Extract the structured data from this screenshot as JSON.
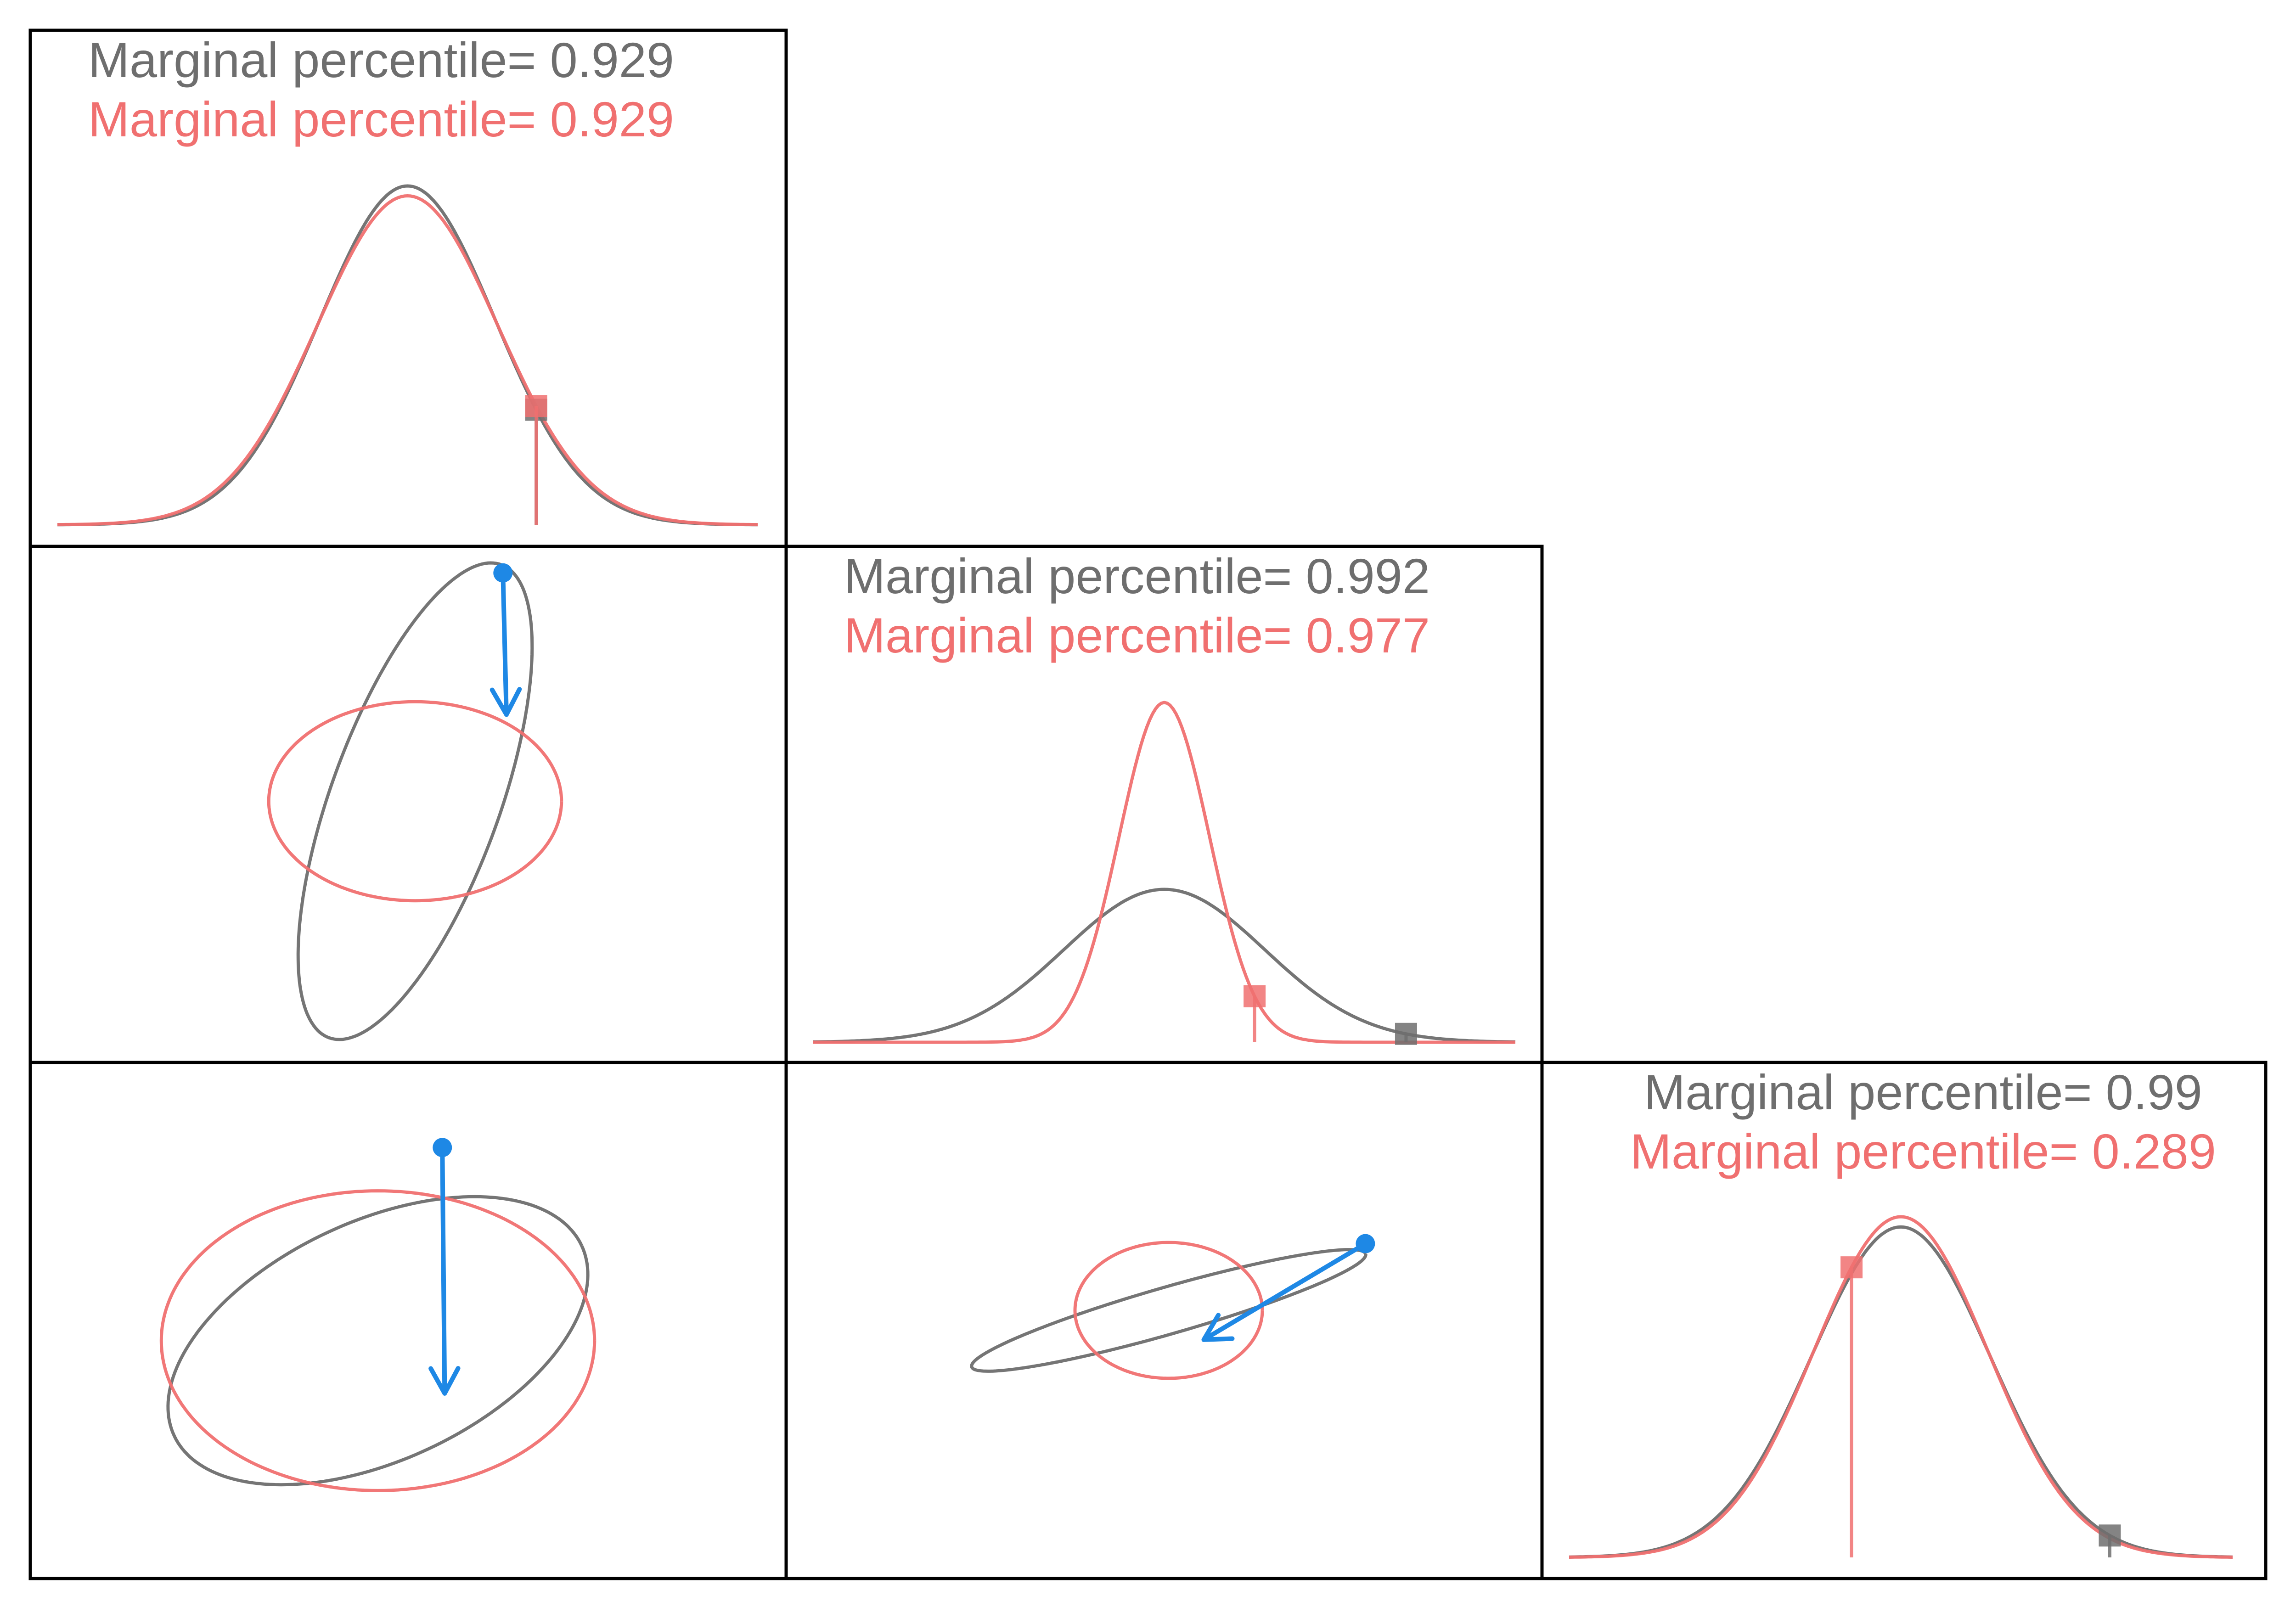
{
  "colors": {
    "series_a": "#6e6e6e",
    "series_b": "#f07070",
    "arrow": "#1e88e5",
    "background": "#ffffff",
    "frame": "#000000"
  },
  "chart_data": [
    {
      "type": "line",
      "panel": "diagonal-1",
      "variable": 1,
      "labels": [
        {
          "series": "gray",
          "text": "Marginal percentile= 0.929"
        },
        {
          "series": "red",
          "text": "Marginal percentile= 0.929"
        }
      ],
      "series": [
        {
          "color": "gray",
          "mean": 0,
          "sd": 1.0,
          "observed": 1.47,
          "percentile": 0.929
        },
        {
          "color": "red",
          "mean": 0,
          "sd": 1.03,
          "observed": 1.47,
          "percentile": 0.929
        }
      ],
      "xlim": [
        -4,
        4
      ],
      "grid": false
    },
    {
      "type": "line",
      "panel": "diagonal-2",
      "variable": 2,
      "labels": [
        {
          "series": "gray",
          "text": "Marginal percentile= 0.992"
        },
        {
          "series": "red",
          "text": "Marginal percentile= 0.977"
        }
      ],
      "series": [
        {
          "color": "gray",
          "mean": 0,
          "sd": 1.0,
          "observed": 2.41,
          "percentile": 0.992
        },
        {
          "color": "red",
          "mean": 0,
          "sd": 0.45,
          "observed": 0.9,
          "percentile": 0.977
        }
      ],
      "xlim": [
        -3.5,
        3.5
      ],
      "grid": false
    },
    {
      "type": "line",
      "panel": "diagonal-3",
      "variable": 3,
      "labels": [
        {
          "series": "gray",
          "text": "Marginal percentile= 0.99"
        },
        {
          "series": "red",
          "text": "Marginal percentile= 0.289"
        }
      ],
      "series": [
        {
          "color": "gray",
          "mean": 0,
          "sd": 1.0,
          "observed": 2.33,
          "percentile": 0.99
        },
        {
          "color": "red",
          "mean": 0,
          "sd": 0.97,
          "observed": -0.55,
          "percentile": 0.289
        }
      ],
      "xlim": [
        -3.7,
        3.7
      ],
      "grid": false
    },
    {
      "type": "scatter",
      "panel": "pair-2-1",
      "variables": [
        1,
        2
      ],
      "ellipses": [
        {
          "color": "gray",
          "center": [
            0,
            0
          ],
          "semi_axes": [
            2.15,
            0.72
          ],
          "angle_deg": 70
        },
        {
          "color": "red",
          "center": [
            0,
            0
          ],
          "semi_axes": [
            1.25,
            0.85
          ],
          "angle_deg": 0
        }
      ],
      "arrow": {
        "from": [
          0.75,
          1.95
        ],
        "to": [
          0.78,
          0.74
        ]
      },
      "xlim": [
        -2.2,
        2.2
      ],
      "ylim": [
        -2.2,
        2.2
      ],
      "grid": false
    },
    {
      "type": "scatter",
      "panel": "pair-3-1",
      "variables": [
        1,
        3
      ],
      "ellipses": [
        {
          "color": "gray",
          "center": [
            0,
            0
          ],
          "semi_axes": [
            1.92,
            1.02
          ],
          "angle_deg": 25
        },
        {
          "color": "red",
          "center": [
            0,
            0
          ],
          "semi_axes": [
            1.85,
            1.28
          ],
          "angle_deg": 0
        }
      ],
      "arrow": {
        "from": [
          0.55,
          1.65
        ],
        "to": [
          0.57,
          -0.45
        ]
      },
      "xlim": [
        -2.2,
        2.2
      ],
      "ylim": [
        -2.2,
        2.2
      ],
      "grid": false
    },
    {
      "type": "scatter",
      "panel": "pair-3-2",
      "variables": [
        2,
        3
      ],
      "ellipses": [
        {
          "color": "gray",
          "center": [
            0,
            0
          ],
          "semi_axes": [
            1.75,
            0.2
          ],
          "angle_deg": 16
        },
        {
          "color": "red",
          "center": [
            0,
            0
          ],
          "semi_axes": [
            0.8,
            0.58
          ],
          "angle_deg": 0
        }
      ],
      "arrow": {
        "from": [
          1.68,
          0.57
        ],
        "to": [
          0.3,
          -0.25
        ]
      },
      "xlim": [
        -2.2,
        2.2
      ],
      "ylim": [
        -2.2,
        2.2
      ],
      "grid": false
    }
  ]
}
